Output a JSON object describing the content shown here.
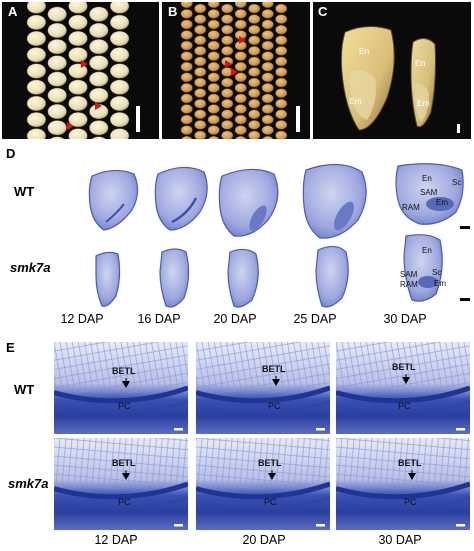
{
  "panels": {
    "a": "A",
    "b": "B",
    "c": "C",
    "d": "D",
    "e": "E"
  },
  "c_labels": {
    "en1": "En",
    "em1": "Em",
    "en2": "En",
    "em2": "Em"
  },
  "d": {
    "row_wt": "WT",
    "row_mut": "smk7a",
    "dap": [
      "12 DAP",
      "16 DAP",
      "20 DAP",
      "25 DAP",
      "30 DAP"
    ],
    "wt30_labels": {
      "en": "En",
      "sc": "Sc",
      "sam": "SAM",
      "em": "Em",
      "ram": "RAM"
    },
    "mut30_labels": {
      "en": "En",
      "sam": "SAM",
      "sc": "Sc",
      "ram": "RAM",
      "em": "Em"
    }
  },
  "e": {
    "row_wt": "WT",
    "row_mut": "smk7a",
    "dap": [
      "12 DAP",
      "20 DAP",
      "30 DAP"
    ],
    "betl": "BETL",
    "pc": "PC"
  },
  "colors": {
    "stain": "#6f7fc8",
    "stain_dark": "#2e45a8",
    "stain_light": "#c9cfee",
    "kernel_wt": "#efe6c2",
    "kernel_mut": "#d19a4f",
    "arrow_red": "#e01010"
  }
}
